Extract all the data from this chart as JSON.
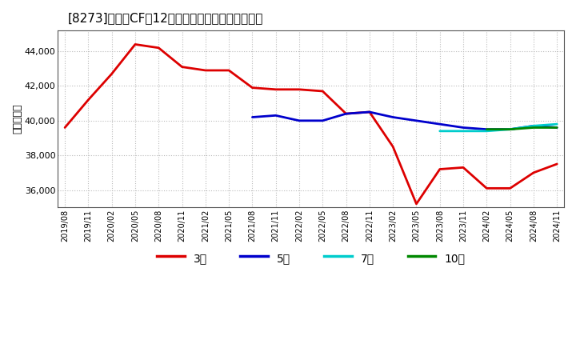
{
  "title": "[8273]　営業CFの12か月移動合計の平均値の推移",
  "ylabel": "（百万円）",
  "background_color": "#ffffff",
  "plot_bg_color": "#ffffff",
  "grid_color": "#aaaaaa",
  "ylim": [
    35000,
    45200
  ],
  "yticks": [
    36000,
    38000,
    40000,
    42000,
    44000
  ],
  "x_labels": [
    "2019/08",
    "2019/11",
    "2020/02",
    "2020/05",
    "2020/08",
    "2020/11",
    "2021/02",
    "2021/05",
    "2021/08",
    "2021/11",
    "2022/02",
    "2022/05",
    "2022/08",
    "2022/11",
    "2023/02",
    "2023/05",
    "2023/08",
    "2023/11",
    "2024/02",
    "2024/05",
    "2024/08",
    "2024/11"
  ],
  "series": {
    "3year": {
      "color": "#dd0000",
      "label": "3年",
      "linewidth": 2.0,
      "data_x": [
        0,
        1,
        2,
        3,
        4,
        5,
        6,
        7,
        8,
        9,
        10,
        11,
        12,
        13,
        14,
        15,
        16,
        17,
        18,
        19,
        20,
        21
      ],
      "data_y": [
        39600,
        41200,
        42700,
        44400,
        44200,
        43100,
        42900,
        42900,
        41900,
        41800,
        41800,
        41700,
        40400,
        40500,
        38500,
        35200,
        37200,
        37300,
        36100,
        36100,
        37000,
        37500
      ]
    },
    "5year": {
      "color": "#0000cc",
      "label": "5年",
      "linewidth": 2.0,
      "data_x": [
        8,
        9,
        10,
        11,
        12,
        13,
        14,
        15,
        16,
        17,
        18,
        19,
        20,
        21
      ],
      "data_y": [
        40200,
        40300,
        40000,
        40000,
        40400,
        40500,
        40200,
        40000,
        39800,
        39600,
        39500,
        39500,
        39700,
        39600
      ]
    },
    "7year": {
      "color": "#00cccc",
      "label": "7年",
      "linewidth": 2.0,
      "data_x": [
        16,
        17,
        18,
        19,
        20,
        21
      ],
      "data_y": [
        39400,
        39400,
        39400,
        39500,
        39700,
        39800
      ]
    },
    "10year": {
      "color": "#008800",
      "label": "10年",
      "linewidth": 2.0,
      "data_x": [
        18,
        19,
        20,
        21
      ],
      "data_y": [
        39500,
        39500,
        39600,
        39600
      ]
    }
  },
  "legend": {
    "labels": [
      "3年",
      "5年",
      "7年",
      "10年"
    ],
    "colors": [
      "#dd0000",
      "#0000cc",
      "#00cccc",
      "#008800"
    ]
  }
}
